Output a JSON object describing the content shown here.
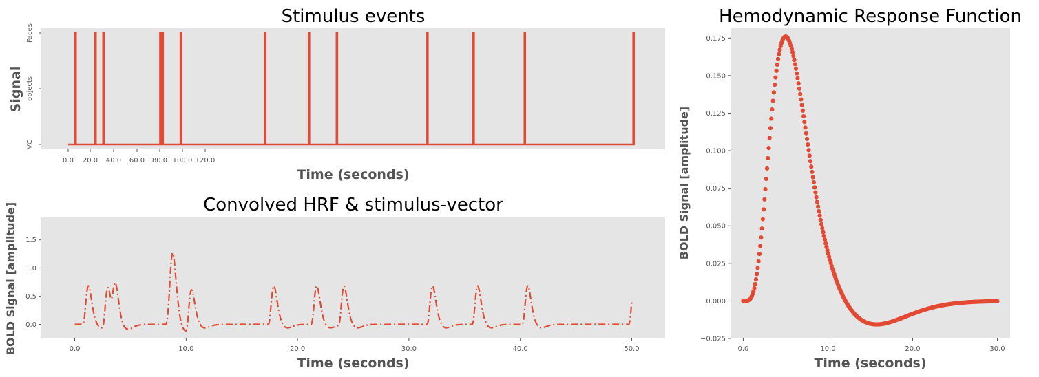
{
  "chart_data": [
    {
      "type": "line",
      "title": "Stimulus events",
      "xlabel": "Time (seconds)",
      "ylabel": "Signal",
      "x_ticks": [
        "0.0",
        "20.0",
        "40.0",
        "60.0",
        "80.0",
        "100.0",
        "120.0"
      ],
      "y_ticks": [
        "VC",
        "objects",
        "Faces"
      ],
      "xlim": [
        0,
        1000
      ],
      "event_times": [
        13,
        48,
        62,
        162,
        166,
        198,
        346,
        423,
        472,
        631,
        712,
        802,
        993
      ],
      "duration": 995,
      "color": "#e24a33"
    },
    {
      "type": "line",
      "style": "dash-dot",
      "title": "Convolved HRF & stimulus-vector",
      "xlabel": "Time (seconds)",
      "ylabel": "BOLD Signal [amplitude]",
      "xlim": [
        -3,
        53
      ],
      "ylim": [
        -0.25,
        1.9
      ],
      "x_ticks": [
        "0.0",
        "10.0",
        "20.0",
        "30.0",
        "40.0",
        "50.0"
      ],
      "y_ticks": [
        "0.0",
        "0.5",
        "1.0",
        "1.5"
      ],
      "event_times": [
        0.65,
        2.4,
        3.1,
        8.1,
        8.3,
        9.9,
        17.3,
        21.15,
        23.6,
        31.55,
        35.6,
        40.1,
        49.65
      ],
      "color": "#e24a33"
    },
    {
      "type": "scatter",
      "title": "Hemodynamic Response Function",
      "xlabel": "Time (seconds)",
      "ylabel": "BOLD Signal [amplitude]",
      "xlim": [
        -1.5,
        31.5
      ],
      "ylim": [
        -0.025,
        0.182
      ],
      "x_ticks": [
        "0.0",
        "10.0",
        "20.0",
        "30.0"
      ],
      "y_ticks": [
        "−0.025",
        "0.000",
        "0.025",
        "0.050",
        "0.075",
        "0.100",
        "0.125",
        "0.150",
        "0.175"
      ],
      "x_range": [
        0,
        30
      ],
      "n_points": 300,
      "peak": {
        "x": 5.0,
        "y": 0.176
      },
      "trough": {
        "x": 15.6,
        "y": -0.0155
      },
      "color": "#e24a33"
    }
  ]
}
